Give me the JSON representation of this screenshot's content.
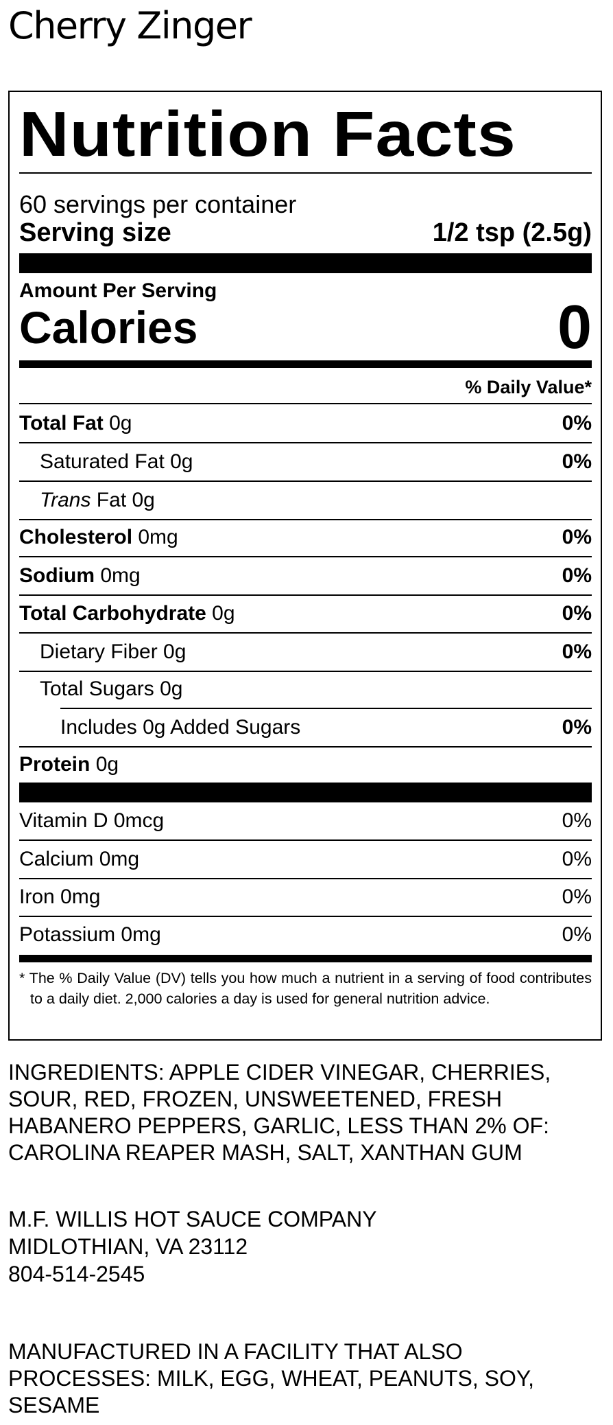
{
  "product_name": "Cherry Zinger",
  "label": {
    "title": "Nutrition Facts",
    "servings_per_container": "60 servings per container",
    "serving_size_label": "Serving size",
    "serving_size_value": "1/2 tsp (2.5g)",
    "amount_per_serving": "Amount Per Serving",
    "calories_label": "Calories",
    "calories_value": "0",
    "daily_value_header": "% Daily Value*",
    "nutrients": [
      {
        "name": "Total Fat",
        "amount": " 0g",
        "dv": "0%"
      },
      {
        "name": "Saturated Fat 0g",
        "amount": "",
        "dv": "0%"
      },
      {
        "name": "Trans",
        "amount": " Fat 0g",
        "dv": ""
      },
      {
        "name": "Cholesterol",
        "amount": " 0mg",
        "dv": "0%"
      },
      {
        "name": "Sodium",
        "amount": " 0mg",
        "dv": "0%"
      },
      {
        "name": "Total Carbohydrate",
        "amount": " 0g",
        "dv": "0%"
      },
      {
        "name": "Dietary Fiber 0g",
        "amount": "",
        "dv": "0%"
      },
      {
        "name": "Total Sugars 0g",
        "amount": "",
        "dv": ""
      },
      {
        "name": "Includes 0g Added Sugars",
        "amount": "",
        "dv": "0%"
      },
      {
        "name": "Protein",
        "amount": " 0g",
        "dv": ""
      }
    ],
    "vitamins": [
      {
        "name": "Vitamin D 0mcg",
        "dv": "0%"
      },
      {
        "name": "Calcium 0mg",
        "dv": "0%"
      },
      {
        "name": "Iron 0mg",
        "dv": "0%"
      },
      {
        "name": "Potassium 0mg",
        "dv": "0%"
      }
    ],
    "footnote": "* The % Daily Value (DV) tells you how much a nutrient in a serving of food contributes to a daily diet. 2,000 calories a day is used for general nutrition advice."
  },
  "ingredients": [
    "INGREDIENTS: APPLE CIDER VINEGAR, CHERRIES,",
    "SOUR, RED, FROZEN, UNSWEETENED, FRESH",
    "HABANERO PEPPERS, GARLIC, LESS THAN 2% OF:",
    "CAROLINA REAPER MASH, SALT, XANTHAN GUM"
  ],
  "company": [
    "M.F. WILLIS HOT SAUCE COMPANY",
    "MIDLOTHIAN, VA 23112",
    "804-514-2545"
  ],
  "allergen": [
    "MANUFACTURED IN A FACILITY THAT ALSO",
    "PROCESSES: MILK, EGG, WHEAT, PEANUTS, SOY,",
    "SESAME"
  ]
}
